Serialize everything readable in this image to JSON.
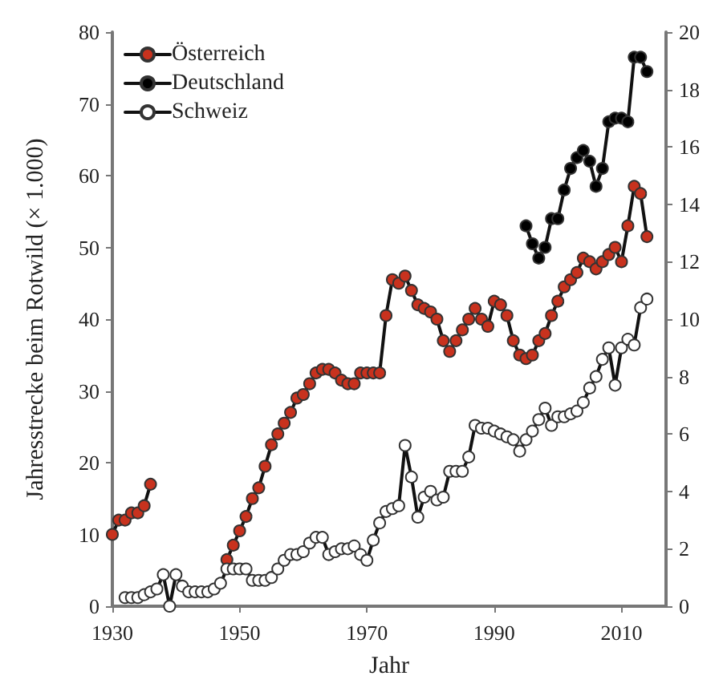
{
  "chart_data": {
    "type": "line",
    "xlabel": "Jahr",
    "ylabel": "Jahresstrecke beim Rotwild (× 1.000)",
    "xlim": [
      1930,
      2017
    ],
    "xticks": [
      1930,
      1950,
      1970,
      1990,
      2010
    ],
    "ylim": [
      0,
      80
    ],
    "yticks": [
      0,
      10,
      20,
      30,
      40,
      50,
      60,
      70,
      80
    ],
    "y2lim": [
      0,
      20
    ],
    "y2ticks": [
      0,
      2,
      4,
      6,
      8,
      10,
      12,
      14,
      16,
      18,
      20
    ],
    "legend": "top left",
    "marker": "circle",
    "line_style": "solid",
    "grid": false,
    "series": [
      {
        "name": "Österreich",
        "color": "#c8321e",
        "x": [
          1930,
          1931,
          1932,
          1933,
          1934,
          1935,
          1936,
          1937,
          1948,
          1949,
          1950,
          1951,
          1952,
          1953,
          1954,
          1955,
          1956,
          1957,
          1958,
          1959,
          1960,
          1961,
          1962,
          1963,
          1964,
          1965,
          1966,
          1967,
          1968,
          1969,
          1970,
          1971,
          1972,
          1973,
          1974,
          1975,
          1976,
          1977,
          1978,
          1979,
          1980,
          1981,
          1982,
          1983,
          1984,
          1985,
          1986,
          1987,
          1988,
          1989,
          1990,
          1991,
          1992,
          1993,
          1994,
          1995,
          1996,
          1997,
          1998,
          1999,
          2000,
          2001,
          2002,
          2003,
          2004,
          2005,
          2006,
          2007,
          2008,
          2009,
          2010,
          2011,
          2012,
          2013,
          2014
        ],
        "values": [
          10,
          12,
          12,
          13,
          13,
          14,
          17,
          null,
          6.5,
          8.5,
          10.5,
          12.5,
          15,
          16.5,
          19.5,
          22.5,
          24,
          25.5,
          27,
          29,
          29.5,
          31,
          32.5,
          33,
          33,
          32.5,
          31.5,
          31,
          31,
          32.5,
          32.5,
          32.5,
          32.5,
          40.5,
          45.5,
          45,
          46,
          44,
          42,
          41.5,
          41,
          40,
          37,
          35.5,
          37,
          38.5,
          40,
          41.5,
          40,
          39,
          42.5,
          42,
          40.5,
          37,
          35,
          34.5,
          35,
          37,
          38,
          40.5,
          42.5,
          44.5,
          45.5,
          46.5,
          48.5,
          48,
          47,
          48,
          49,
          50,
          48,
          53,
          58.5,
          57.5,
          51.5
        ]
      },
      {
        "name": "Deutschland",
        "color": "#000000",
        "x": [
          1995,
          1996,
          1997,
          1998,
          1999,
          2000,
          2001,
          2002,
          2003,
          2004,
          2005,
          2006,
          2007,
          2008,
          2009,
          2010,
          2011,
          2012,
          2013,
          2014
        ],
        "values": [
          53,
          50.5,
          48.5,
          50,
          54,
          54,
          58,
          61,
          62.5,
          63.5,
          62,
          58.5,
          61,
          67.5,
          68,
          68,
          67.5,
          76.5,
          76.5,
          74.5
        ]
      },
      {
        "name": "Schweiz",
        "color": "#ffffff",
        "axis": "y2",
        "x": [
          1932,
          1933,
          1934,
          1935,
          1936,
          1937,
          1938,
          1939,
          1940,
          1941,
          1942,
          1943,
          1944,
          1945,
          1946,
          1947,
          1948,
          1949,
          1950,
          1951,
          1952,
          1953,
          1954,
          1955,
          1956,
          1957,
          1958,
          1959,
          1960,
          1961,
          1962,
          1963,
          1964,
          1965,
          1966,
          1967,
          1968,
          1969,
          1970,
          1971,
          1972,
          1973,
          1974,
          1975,
          1976,
          1977,
          1978,
          1979,
          1980,
          1981,
          1982,
          1983,
          1984,
          1985,
          1986,
          1987,
          1988,
          1989,
          1990,
          1991,
          1992,
          1993,
          1994,
          1995,
          1996,
          1997,
          1998,
          1999,
          2000,
          2001,
          2002,
          2003,
          2004,
          2005,
          2006,
          2007,
          2008,
          2009,
          2010,
          2011,
          2012,
          2013,
          2014
        ],
        "values": [
          0.3,
          0.3,
          0.3,
          0.4,
          0.5,
          0.6,
          1.1,
          0,
          1.1,
          0.7,
          0.5,
          0.5,
          0.5,
          0.5,
          0.6,
          0.8,
          1.3,
          1.3,
          1.3,
          1.3,
          0.9,
          0.9,
          0.9,
          1.0,
          1.3,
          1.6,
          1.8,
          1.8,
          1.9,
          2.2,
          2.4,
          2.4,
          1.8,
          1.9,
          2.0,
          2.0,
          2.1,
          1.8,
          1.6,
          2.3,
          2.9,
          3.3,
          3.4,
          3.5,
          5.6,
          4.5,
          3.1,
          3.8,
          4.0,
          3.7,
          3.8,
          4.7,
          4.7,
          4.7,
          5.2,
          6.3,
          6.2,
          6.2,
          6.1,
          6.0,
          5.9,
          5.8,
          5.4,
          5.8,
          6.1,
          6.5,
          6.9,
          6.3,
          6.6,
          6.6,
          6.7,
          6.8,
          7.1,
          7.6,
          8.0,
          8.6,
          9.0,
          7.7,
          9.0,
          9.3,
          9.1,
          10.4,
          10.7
        ]
      }
    ]
  }
}
